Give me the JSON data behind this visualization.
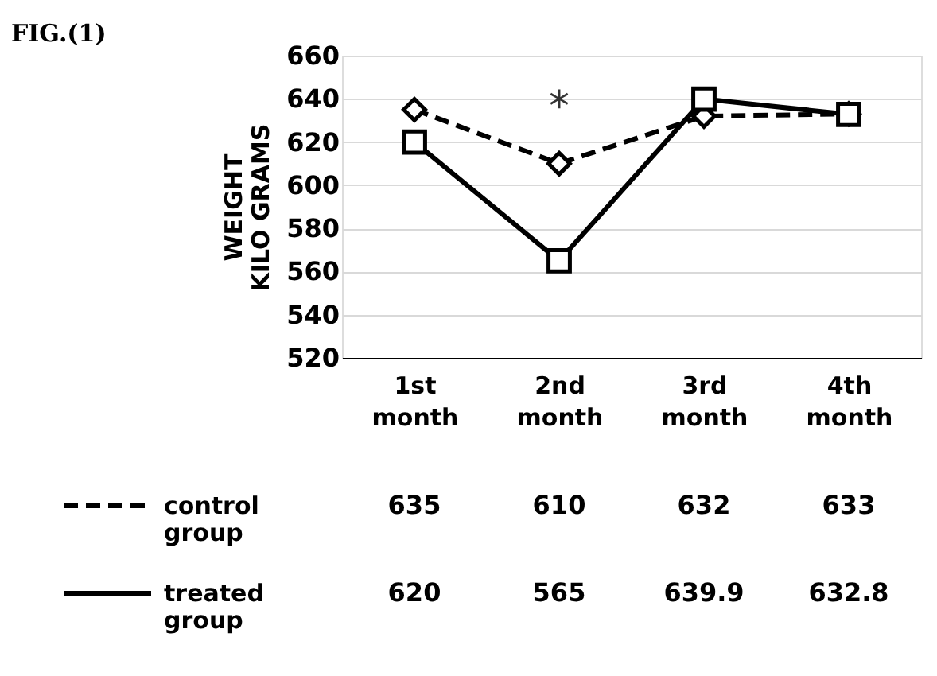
{
  "chart_data": {
    "type": "line",
    "title": "FIG.(1)",
    "ylabel": "WEIGHT\nKILO GRAMS",
    "categories": [
      "1st month",
      "2nd month",
      "3rd month",
      "4th month"
    ],
    "series": [
      {
        "name": "control group",
        "color": "#000000",
        "values": [
          635,
          610,
          632,
          633
        ],
        "marker": "diamond",
        "line_style": "dashed"
      },
      {
        "name": "treated group",
        "color": "#000000",
        "values": [
          620,
          565,
          639.9,
          632.8
        ],
        "marker": "square",
        "line_style": "solid"
      }
    ],
    "ylim": [
      520,
      660
    ],
    "yticks": [
      520,
      540,
      560,
      580,
      600,
      620,
      640,
      660
    ],
    "grid": "y",
    "data_labels": true,
    "legend": "bottom left",
    "annotations": [
      "*"
    ]
  }
}
